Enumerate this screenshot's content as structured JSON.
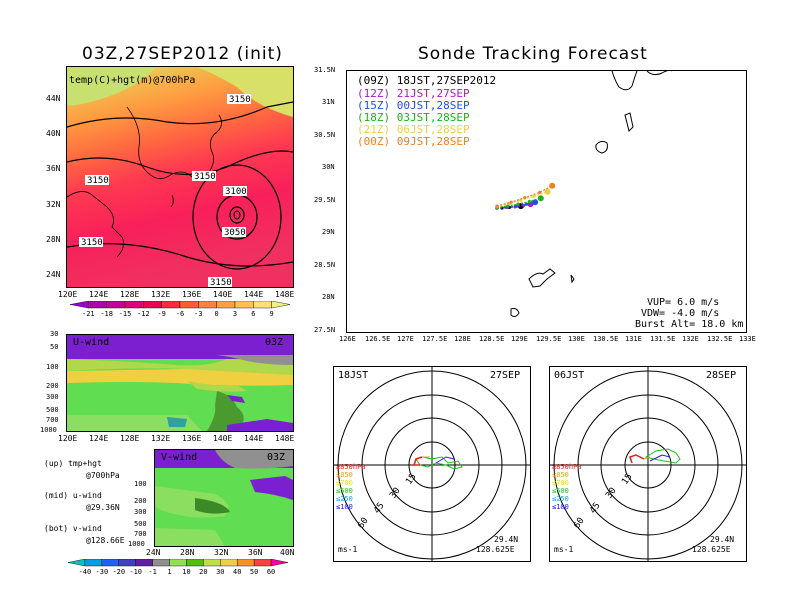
{
  "left_title": "03Z,27SEP2012 (init)",
  "right_title": "Sonde Tracking Forecast",
  "map_top": {
    "overlay_label": "temp(C)+hgt(m)@700hPa",
    "lat_ticks": [
      "44N",
      "40N",
      "36N",
      "32N",
      "28N",
      "24N"
    ],
    "lon_ticks": [
      "120E",
      "124E",
      "128E",
      "132E",
      "136E",
      "140E",
      "144E",
      "148E"
    ],
    "contour_labels": [
      "3150",
      "3150",
      "3150",
      "3100",
      "3050",
      "3150",
      "3150"
    ],
    "colorbar_ticks": [
      "-21",
      "-18",
      "-15",
      "-12",
      "-9",
      "-6",
      "-3",
      "0",
      "3",
      "6",
      "9"
    ],
    "colorbar_colors": [
      "#9900cc",
      "#b000b0",
      "#c8009a",
      "#e0007a",
      "#f20052",
      "#ff2a40",
      "#ff5a3a",
      "#ff8040",
      "#ffa040",
      "#ffc24a",
      "#ffe070",
      "#eef080"
    ]
  },
  "u_wind": {
    "label": "U-wind",
    "time": "03Z",
    "y_ticks": [
      "30",
      "50",
      "100",
      "200",
      "300",
      "500",
      "700",
      "1000"
    ],
    "x_ticks": [
      "120E",
      "124E",
      "128E",
      "132E",
      "136E",
      "140E",
      "144E",
      "148E"
    ]
  },
  "v_wind": {
    "label": "V-wind",
    "time": "03Z",
    "y_ticks": [
      "100",
      "200",
      "300",
      "500",
      "700",
      "1000"
    ],
    "x_ticks": [
      "24N",
      "28N",
      "32N",
      "36N",
      "40N"
    ],
    "colorbar_ticks": [
      "-40",
      "-30",
      "-20",
      "-10",
      "-1",
      "1",
      "10",
      "20",
      "30",
      "40",
      "50",
      "60"
    ],
    "colorbar_colors": [
      "#00c0c0",
      "#00a0e0",
      "#2060ff",
      "#4040c0",
      "#6020a0",
      "#909090",
      "#90e050",
      "#50c000",
      "#c0e040",
      "#f0d040",
      "#ff9020",
      "#ff4040",
      "#ff00a0"
    ]
  },
  "legend_notes": [
    {
      "line1": "(up) tmp+hgt",
      "line2": "@700hPa"
    },
    {
      "line1": "(mid) u-wind",
      "line2": "@29.36N"
    },
    {
      "line1": "(bot) v-wind",
      "line2": "@128.66E"
    }
  ],
  "track_map": {
    "y_ticks": [
      "31.5N",
      "31N",
      "30.5N",
      "30N",
      "29.5N",
      "29N",
      "28.5N",
      "28N",
      "27.5N"
    ],
    "x_ticks": [
      "126E",
      "126.5E",
      "127E",
      "127.5E",
      "128E",
      "128.5E",
      "129E",
      "129.5E",
      "130E",
      "130.5E",
      "131E",
      "131.5E",
      "132E",
      "132.5E",
      "133E"
    ],
    "legend": [
      {
        "code": "(09Z)",
        "label": "18JST,27SEP2012",
        "color": "#000000"
      },
      {
        "code": "(12Z)",
        "label": "21JST,27SEP",
        "color": "#a020c0"
      },
      {
        "code": "(15Z)",
        "label": "00JST,28SEP",
        "color": "#2050e0"
      },
      {
        "code": "(18Z)",
        "label": "03JST,28SEP",
        "color": "#20b020"
      },
      {
        "code": "(21Z)",
        "label": "06JST,28SEP",
        "color": "#f0d040"
      },
      {
        "code": "(00Z)",
        "label": "09JST,28SEP",
        "color": "#f08020"
      }
    ],
    "params": [
      "VUP= 6.0 m/s",
      "VDW= -4.0 m/s",
      "Burst Alt= 18.0 km"
    ]
  },
  "hodographs": [
    {
      "time": "18JST",
      "date": "27SEP",
      "lat": "29.4N",
      "lon": "128.625E",
      "unit": "ms-1",
      "ring_labels": [
        "15",
        "30",
        "45",
        "60"
      ],
      "levels": [
        {
          "label": "≥850hPa",
          "color": "#e02020"
        },
        {
          "label": "≤850",
          "color": "#f0a020"
        },
        {
          "label": "≤700",
          "color": "#e0e020"
        },
        {
          "label": "≤500",
          "color": "#20c020"
        },
        {
          "label": "≤250",
          "color": "#20a0e0"
        },
        {
          "label": "≤100",
          "color": "#2020e0"
        }
      ]
    },
    {
      "time": "06JST",
      "date": "28SEP",
      "lat": "29.4N",
      "lon": "128.625E",
      "unit": "ms-1",
      "ring_labels": [
        "15",
        "30",
        "45",
        "60"
      ],
      "levels": [
        {
          "label": "≥850hPa",
          "color": "#e02020"
        },
        {
          "label": "≤850",
          "color": "#f0a020"
        },
        {
          "label": "≤700",
          "color": "#e0e020"
        },
        {
          "label": "≤500",
          "color": "#20c020"
        },
        {
          "label": "≤250",
          "color": "#20a0e0"
        },
        {
          "label": "≤100",
          "color": "#2020e0"
        }
      ]
    }
  ],
  "chart_data": [
    {
      "type": "heatmap",
      "title": "03Z,27SEP2012 (init)",
      "subtitle": "temp(C)+hgt(m)@700hPa",
      "x": [
        "120E",
        "124E",
        "128E",
        "132E",
        "136E",
        "140E",
        "144E",
        "148E"
      ],
      "y": [
        "24N",
        "28N",
        "32N",
        "36N",
        "40N",
        "44N"
      ],
      "legend_ticks": [
        -21,
        -18,
        -15,
        -12,
        -9,
        -6,
        -3,
        0,
        3,
        6,
        9
      ],
      "contour_labels": [
        3150,
        3150,
        3150,
        3100,
        3050,
        3150,
        3150
      ]
    },
    {
      "type": "line",
      "title": "Sonde Tracking Forecast",
      "xlim": [
        126,
        133
      ],
      "ylim": [
        27.5,
        31.5
      ],
      "series": [
        {
          "name": "(09Z) 18JST,27SEP2012",
          "x": [
            128.63,
            128.72,
            128.85,
            128.95,
            129.05
          ],
          "y": [
            29.4,
            29.4,
            29.41,
            29.42,
            29.43
          ]
        },
        {
          "name": "(12Z) 21JST,27SEP",
          "x": [
            128.63,
            128.8,
            128.95,
            129.1,
            129.22
          ],
          "y": [
            29.4,
            29.41,
            29.42,
            29.44,
            29.46
          ]
        },
        {
          "name": "(15Z) 00JST,28SEP",
          "x": [
            128.63,
            128.8,
            128.98,
            129.15,
            129.3
          ],
          "y": [
            29.4,
            29.41,
            29.43,
            29.46,
            29.49
          ]
        },
        {
          "name": "(18Z) 03JST,28SEP",
          "x": [
            128.63,
            128.82,
            129.0,
            129.2,
            129.4
          ],
          "y": [
            29.41,
            29.43,
            29.46,
            29.5,
            29.55
          ]
        },
        {
          "name": "(21Z) 06JST,28SEP",
          "x": [
            128.63,
            128.85,
            129.05,
            129.28,
            129.52
          ],
          "y": [
            29.42,
            29.47,
            29.52,
            29.58,
            29.65
          ]
        },
        {
          "name": "(00Z) 09JST,28SEP",
          "x": [
            128.63,
            128.88,
            129.12,
            129.38,
            129.6
          ],
          "y": [
            29.43,
            29.49,
            29.56,
            29.64,
            29.74
          ]
        }
      ]
    }
  ]
}
